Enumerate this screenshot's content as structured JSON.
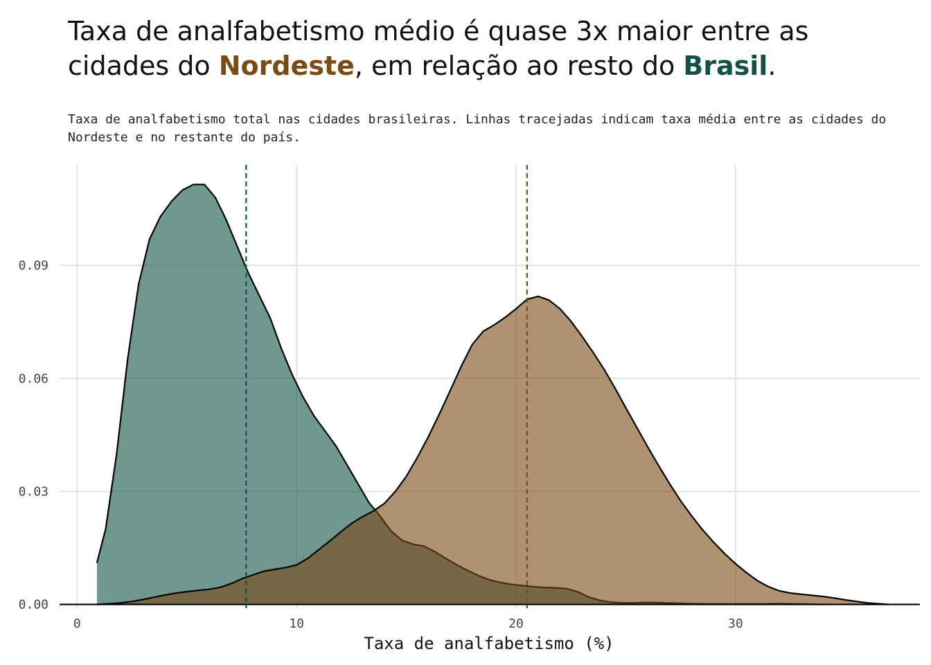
{
  "title": {
    "line1": "Taxa de analfabetismo médio é quase 3x maior entre as",
    "line2_start": "cidades do ",
    "highlight_nordeste": "Nordeste",
    "line2_mid": ", em relação ao resto do ",
    "highlight_brasil": "Brasil",
    "line2_end": "."
  },
  "subtitle": "Taxa de analfabetismo total nas cidades brasileiras. Linhas tracejadas indicam taxa média entre as cidades do Nordeste e no restante do país.",
  "chart_data": {
    "type": "area",
    "xlabel": "Taxa de analfabetismo (%)",
    "ylabel": "",
    "xlim": [
      -0.8,
      38.4
    ],
    "ylim": [
      -0.001,
      0.1167
    ],
    "x_ticks": [
      0,
      10,
      20,
      30
    ],
    "x_tick_labels": [
      "0",
      "10",
      "20",
      "30"
    ],
    "y_ticks": [
      0,
      0.03,
      0.06,
      0.09
    ],
    "y_tick_labels": [
      "0.00",
      "0.03",
      "0.06",
      "0.09"
    ],
    "grid": true,
    "series": [
      {
        "key": "resto",
        "fill": "#135147",
        "x": [
          0.9,
          1.3,
          1.8,
          2.3,
          2.8,
          3.3,
          3.8,
          4.3,
          4.8,
          5.3,
          5.8,
          6.3,
          6.8,
          7.3,
          7.8,
          8.3,
          8.8,
          9.3,
          9.8,
          10.3,
          10.8,
          11.3,
          11.8,
          12.3,
          12.8,
          13.3,
          13.8,
          14.3,
          14.8,
          15.3,
          15.8,
          16.3,
          16.8,
          17.3,
          17.8,
          18.3,
          18.8,
          19.3,
          19.8,
          20.3,
          20.8,
          21.3,
          21.8,
          22.3,
          22.8,
          23.3,
          23.8,
          24.3,
          24.8,
          25.3,
          25.8,
          26.3,
          26.8,
          27.3,
          28,
          29,
          30,
          31,
          32,
          33,
          34
        ],
        "y": [
          0.011,
          0.02,
          0.04,
          0.065,
          0.085,
          0.097,
          0.103,
          0.107,
          0.11,
          0.1115,
          0.1115,
          0.108,
          0.102,
          0.095,
          0.088,
          0.082,
          0.076,
          0.068,
          0.061,
          0.055,
          0.05,
          0.046,
          0.042,
          0.037,
          0.032,
          0.027,
          0.0235,
          0.0195,
          0.017,
          0.016,
          0.0155,
          0.014,
          0.0122,
          0.0105,
          0.009,
          0.0076,
          0.0065,
          0.0058,
          0.0053,
          0.005,
          0.0047,
          0.0045,
          0.0044,
          0.0042,
          0.0034,
          0.002,
          0.0011,
          0.0006,
          0.0004,
          0.0004,
          0.0005,
          0.0005,
          0.0004,
          0.0003,
          0.0002,
          0.0001,
          0.0001,
          0.0001,
          0.0002,
          0.0001,
          0.0
        ]
      },
      {
        "key": "nordeste",
        "fill": "#7a4a12",
        "x": [
          0.9,
          1.5,
          2,
          2.5,
          3,
          3.5,
          4,
          4.5,
          5,
          5.5,
          6,
          6.5,
          7,
          7.5,
          8,
          8.5,
          9,
          9.5,
          10,
          10.5,
          11,
          11.5,
          12,
          12.5,
          13,
          13.5,
          14,
          14.5,
          15,
          15.5,
          16,
          16.5,
          17,
          17.5,
          18,
          18.5,
          19,
          19.5,
          20,
          20.5,
          21,
          21.5,
          22,
          22.5,
          23,
          23.5,
          24,
          24.5,
          25,
          25.5,
          26,
          26.5,
          27,
          27.5,
          28,
          28.5,
          29,
          29.5,
          30,
          30.5,
          31,
          31.5,
          32,
          32.5,
          33,
          33.5,
          34,
          34.5,
          35,
          35.5,
          36,
          36.5,
          37
        ],
        "y": [
          0.0,
          0.0002,
          0.0004,
          0.0008,
          0.0013,
          0.0019,
          0.0025,
          0.003,
          0.0034,
          0.0037,
          0.004,
          0.0045,
          0.0055,
          0.0068,
          0.0078,
          0.0088,
          0.0093,
          0.0098,
          0.0105,
          0.0122,
          0.0145,
          0.0168,
          0.0192,
          0.0215,
          0.0233,
          0.0248,
          0.0268,
          0.03,
          0.034,
          0.039,
          0.0445,
          0.0505,
          0.0568,
          0.0632,
          0.069,
          0.0725,
          0.0742,
          0.0762,
          0.0785,
          0.081,
          0.0818,
          0.0808,
          0.0785,
          0.0752,
          0.0712,
          0.067,
          0.0625,
          0.0575,
          0.0522,
          0.047,
          0.0418,
          0.0368,
          0.032,
          0.0275,
          0.0235,
          0.0198,
          0.0165,
          0.0135,
          0.0108,
          0.0084,
          0.0063,
          0.0047,
          0.0036,
          0.003,
          0.0027,
          0.0024,
          0.0021,
          0.0017,
          0.0012,
          0.0008,
          0.0004,
          0.0002,
          0.0
        ]
      }
    ],
    "mean_lines": [
      {
        "key": "resto",
        "x": 7.7,
        "color": "#135147"
      },
      {
        "key": "nordeste",
        "x": 20.5,
        "color": "#7a4a12"
      }
    ]
  }
}
